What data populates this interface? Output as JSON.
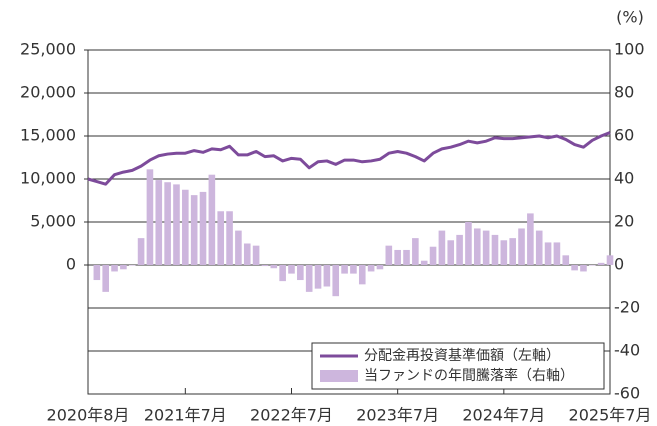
{
  "chart_data": {
    "type": "bar-line",
    "y2_unit_label": "(%)",
    "categories": [
      "2020年8月",
      null,
      null,
      null,
      null,
      null,
      null,
      null,
      null,
      null,
      null,
      "2021年7月",
      null,
      null,
      null,
      null,
      null,
      null,
      null,
      null,
      null,
      null,
      null,
      "2022年7月",
      null,
      null,
      null,
      null,
      null,
      null,
      null,
      null,
      null,
      null,
      null,
      "2023年7月",
      null,
      null,
      null,
      null,
      null,
      null,
      null,
      null,
      null,
      null,
      null,
      "2024年7月",
      null,
      null,
      null,
      null,
      null,
      null,
      null,
      null,
      null,
      null,
      null,
      "2025年7月"
    ],
    "series": [
      {
        "name": "分配金再投資基準価額（左軸）",
        "type": "line",
        "color": "#7d4b9b",
        "axis": "y",
        "values": [
          10000,
          9700,
          9400,
          10500,
          10800,
          11000,
          11500,
          12200,
          12700,
          12900,
          13000,
          13000,
          13300,
          13100,
          13500,
          13400,
          13800,
          12800,
          12800,
          13200,
          12600,
          12700,
          12100,
          12400,
          12300,
          11300,
          12000,
          12100,
          11700,
          12200,
          12200,
          12000,
          12100,
          12300,
          13000,
          13200,
          13000,
          12600,
          12100,
          13000,
          13500,
          13700,
          14000,
          14400,
          14200,
          14400,
          14800,
          14700,
          14700,
          14800,
          14900,
          15000,
          14800,
          15000,
          14600,
          14000,
          13700,
          14500,
          15000,
          15400
        ]
      },
      {
        "name": "当ファンドの年間騰落率（右軸）",
        "type": "bar",
        "color": "#cdb6dd",
        "axis": "y2",
        "values": [
          null,
          -7,
          -12.5,
          -3,
          -2,
          0,
          12.5,
          44.5,
          39.5,
          38.5,
          37.5,
          35,
          32.5,
          34,
          42,
          25,
          25,
          16,
          10,
          9,
          -0.5,
          -1.5,
          -7.5,
          -4,
          -7,
          -12.5,
          -11,
          -10,
          -14.5,
          -4,
          -4,
          -9,
          -3,
          -2,
          9,
          7,
          7,
          12.5,
          2,
          8.5,
          16,
          11.5,
          14,
          20,
          17,
          16,
          14,
          11.5,
          12.5,
          17,
          24,
          16,
          10.5,
          10.5,
          4.5,
          -2.5,
          -3,
          0,
          1,
          4.5
        ]
      }
    ],
    "ylim": [
      -15000,
      25000
    ],
    "yticks": [
      {
        "value": 0,
        "label": "0"
      },
      {
        "value": 5000,
        "label": "5,000"
      },
      {
        "value": 10000,
        "label": "10,000"
      },
      {
        "value": 15000,
        "label": "15,000"
      },
      {
        "value": 20000,
        "label": "20,000"
      },
      {
        "value": 25000,
        "label": "25,000"
      }
    ],
    "y2lim": [
      -60,
      100
    ],
    "y2ticks": [
      -60,
      -40,
      -20,
      0,
      20,
      40,
      60,
      80,
      100
    ],
    "grid": true,
    "legend": "lower right"
  }
}
